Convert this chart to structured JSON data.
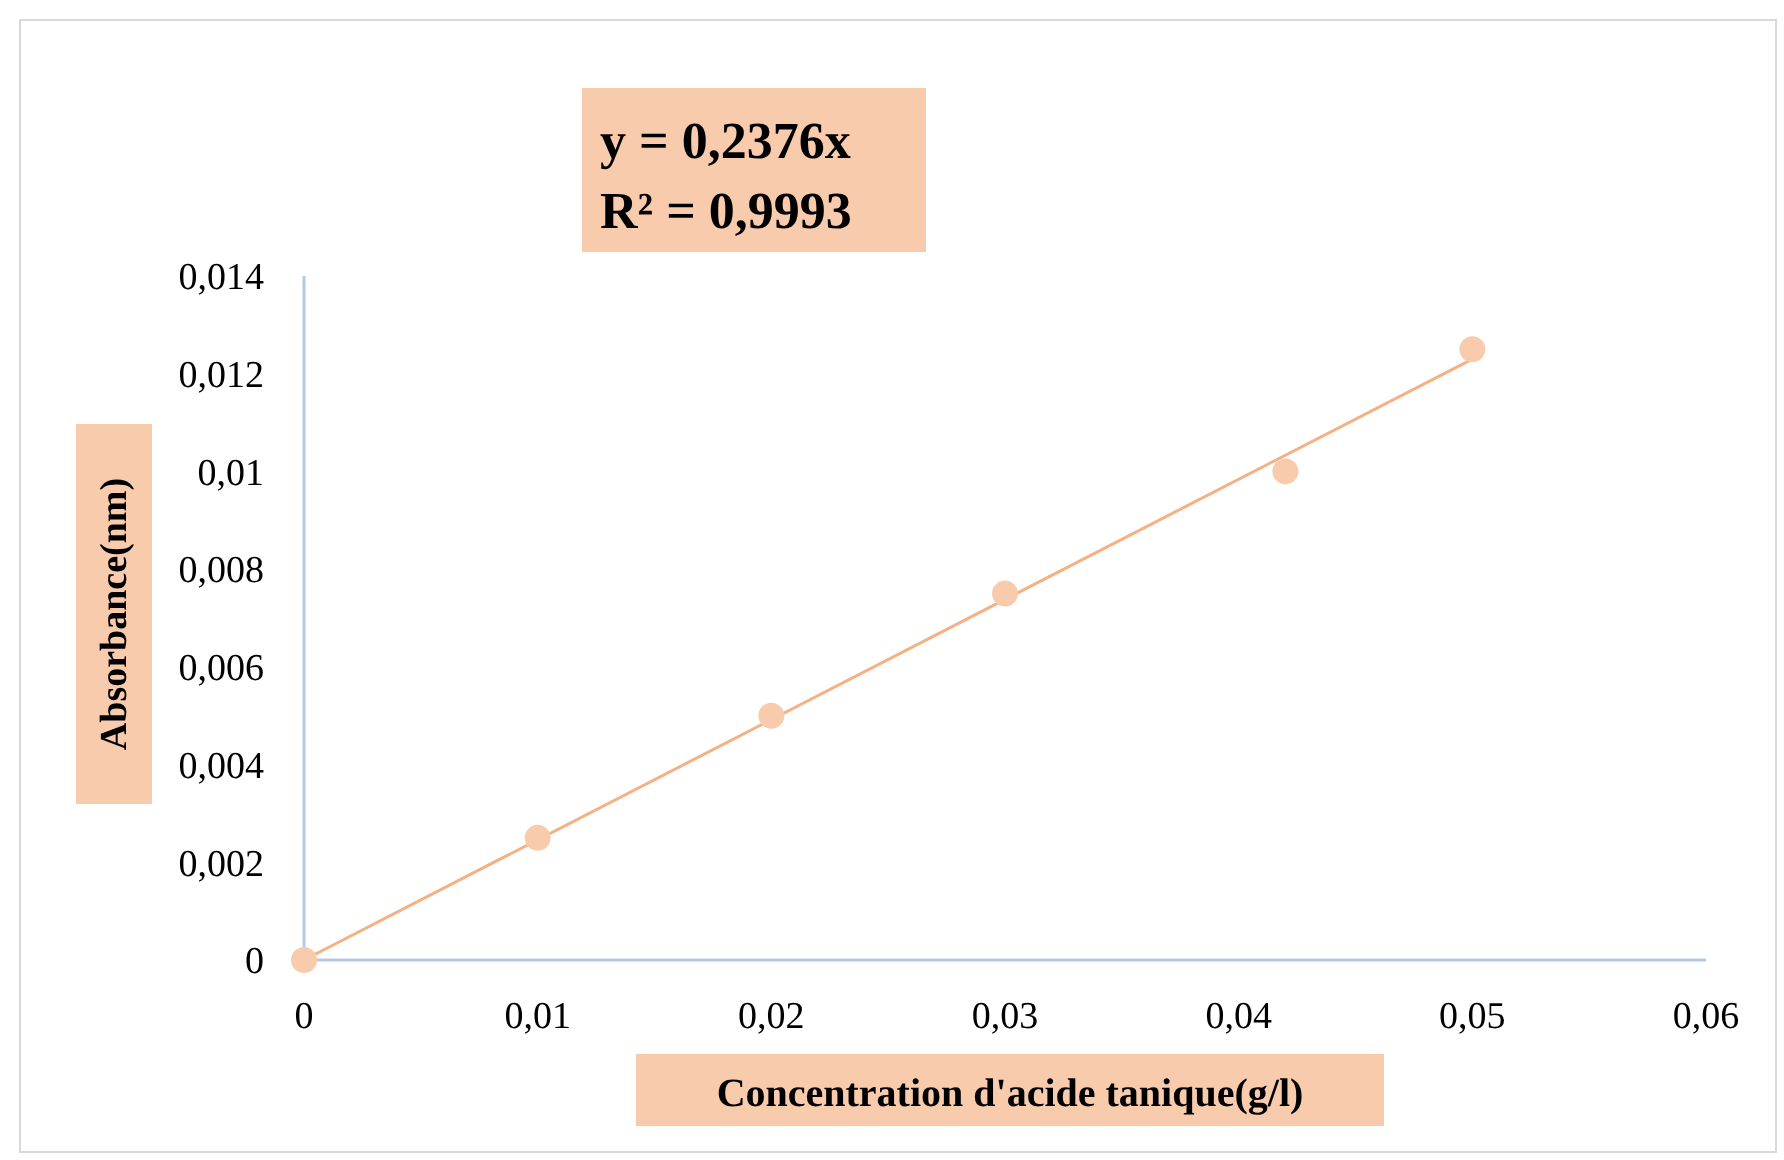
{
  "chart_data": {
    "type": "scatter",
    "xlabel": "Concentration  d'acide tanique(g/l)",
    "ylabel": "Absorbance(nm)",
    "annotations": [
      "y = 0,2376x",
      "R² = 0,9993"
    ],
    "xlim": [
      0,
      0.06
    ],
    "ylim": [
      0,
      0.014
    ],
    "xticks": [
      0,
      {
        "value": 0.01,
        "label": "0,01"
      },
      {
        "value": 0.02,
        "label": "0,02"
      },
      {
        "value": 0.03,
        "label": "0,03"
      },
      {
        "value": 0.04,
        "label": "0,04"
      },
      {
        "value": 0.05,
        "label": "0,05"
      },
      {
        "value": 0.06,
        "label": "0,06"
      }
    ],
    "yticks": [
      0,
      {
        "value": 0.002,
        "label": "0,002"
      },
      {
        "value": 0.004,
        "label": "0,004"
      },
      {
        "value": 0.006,
        "label": "0,006"
      },
      {
        "value": 0.008,
        "label": "0,008"
      },
      {
        "value": 0.01,
        "label": "0,01"
      },
      {
        "value": 0.012,
        "label": "0,012"
      },
      {
        "value": 0.014,
        "label": "0,014"
      }
    ],
    "grid": false,
    "marker": "circle",
    "series": [
      {
        "color": "#f8cbad",
        "x": [
          0,
          0.01,
          0.02,
          0.03,
          0.042,
          0.05
        ],
        "values": [
          0,
          0.0025,
          0.005,
          0.0075,
          0.01,
          0.0125
        ]
      },
      {
        "type": "line",
        "color": "#f4b183",
        "x": [
          0,
          0.05
        ],
        "values": [
          0,
          0.0123
        ],
        "line_style": "solid",
        "marker": "none"
      }
    ]
  }
}
